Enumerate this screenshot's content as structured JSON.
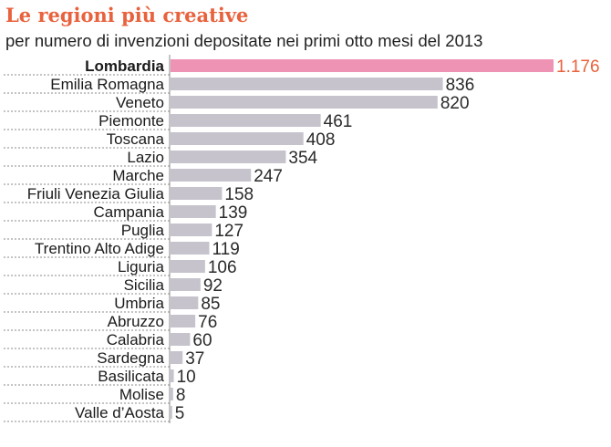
{
  "chart_data": {
    "type": "bar",
    "orientation": "horizontal",
    "title": "Le regioni più creative",
    "subtitle": "per numero di invenzioni depositate nei primi otto mesi del 2013",
    "xlabel": "",
    "ylabel": "",
    "xlim": [
      0,
      1176
    ],
    "grid": false,
    "highlight_category": "Lombardia",
    "colors": {
      "bar": "#c6c3cc",
      "highlight_bar": "#ef93b5",
      "highlight_text": "#e8623d",
      "title": "#e8623d"
    },
    "categories": [
      "Lombardia",
      "Emilia Romagna",
      "Veneto",
      "Piemonte",
      "Toscana",
      "Lazio",
      "Marche",
      "Friuli Venezia Giulia",
      "Campania",
      "Puglia",
      "Trentino Alto Adige",
      "Liguria",
      "Sicilia",
      "Umbria",
      "Abruzzo",
      "Calabria",
      "Sardegna",
      "Basilicata",
      "Molise",
      "Valle d’Aosta"
    ],
    "values": [
      1176,
      836,
      820,
      461,
      408,
      354,
      247,
      158,
      139,
      127,
      119,
      106,
      92,
      85,
      76,
      60,
      37,
      10,
      8,
      5
    ],
    "value_labels": [
      "1.176",
      "836",
      "820",
      "461",
      "408",
      "354",
      "247",
      "158",
      "139",
      "127",
      "119",
      "106",
      "92",
      "85",
      "76",
      "60",
      "37",
      "10",
      "8",
      "5"
    ]
  }
}
